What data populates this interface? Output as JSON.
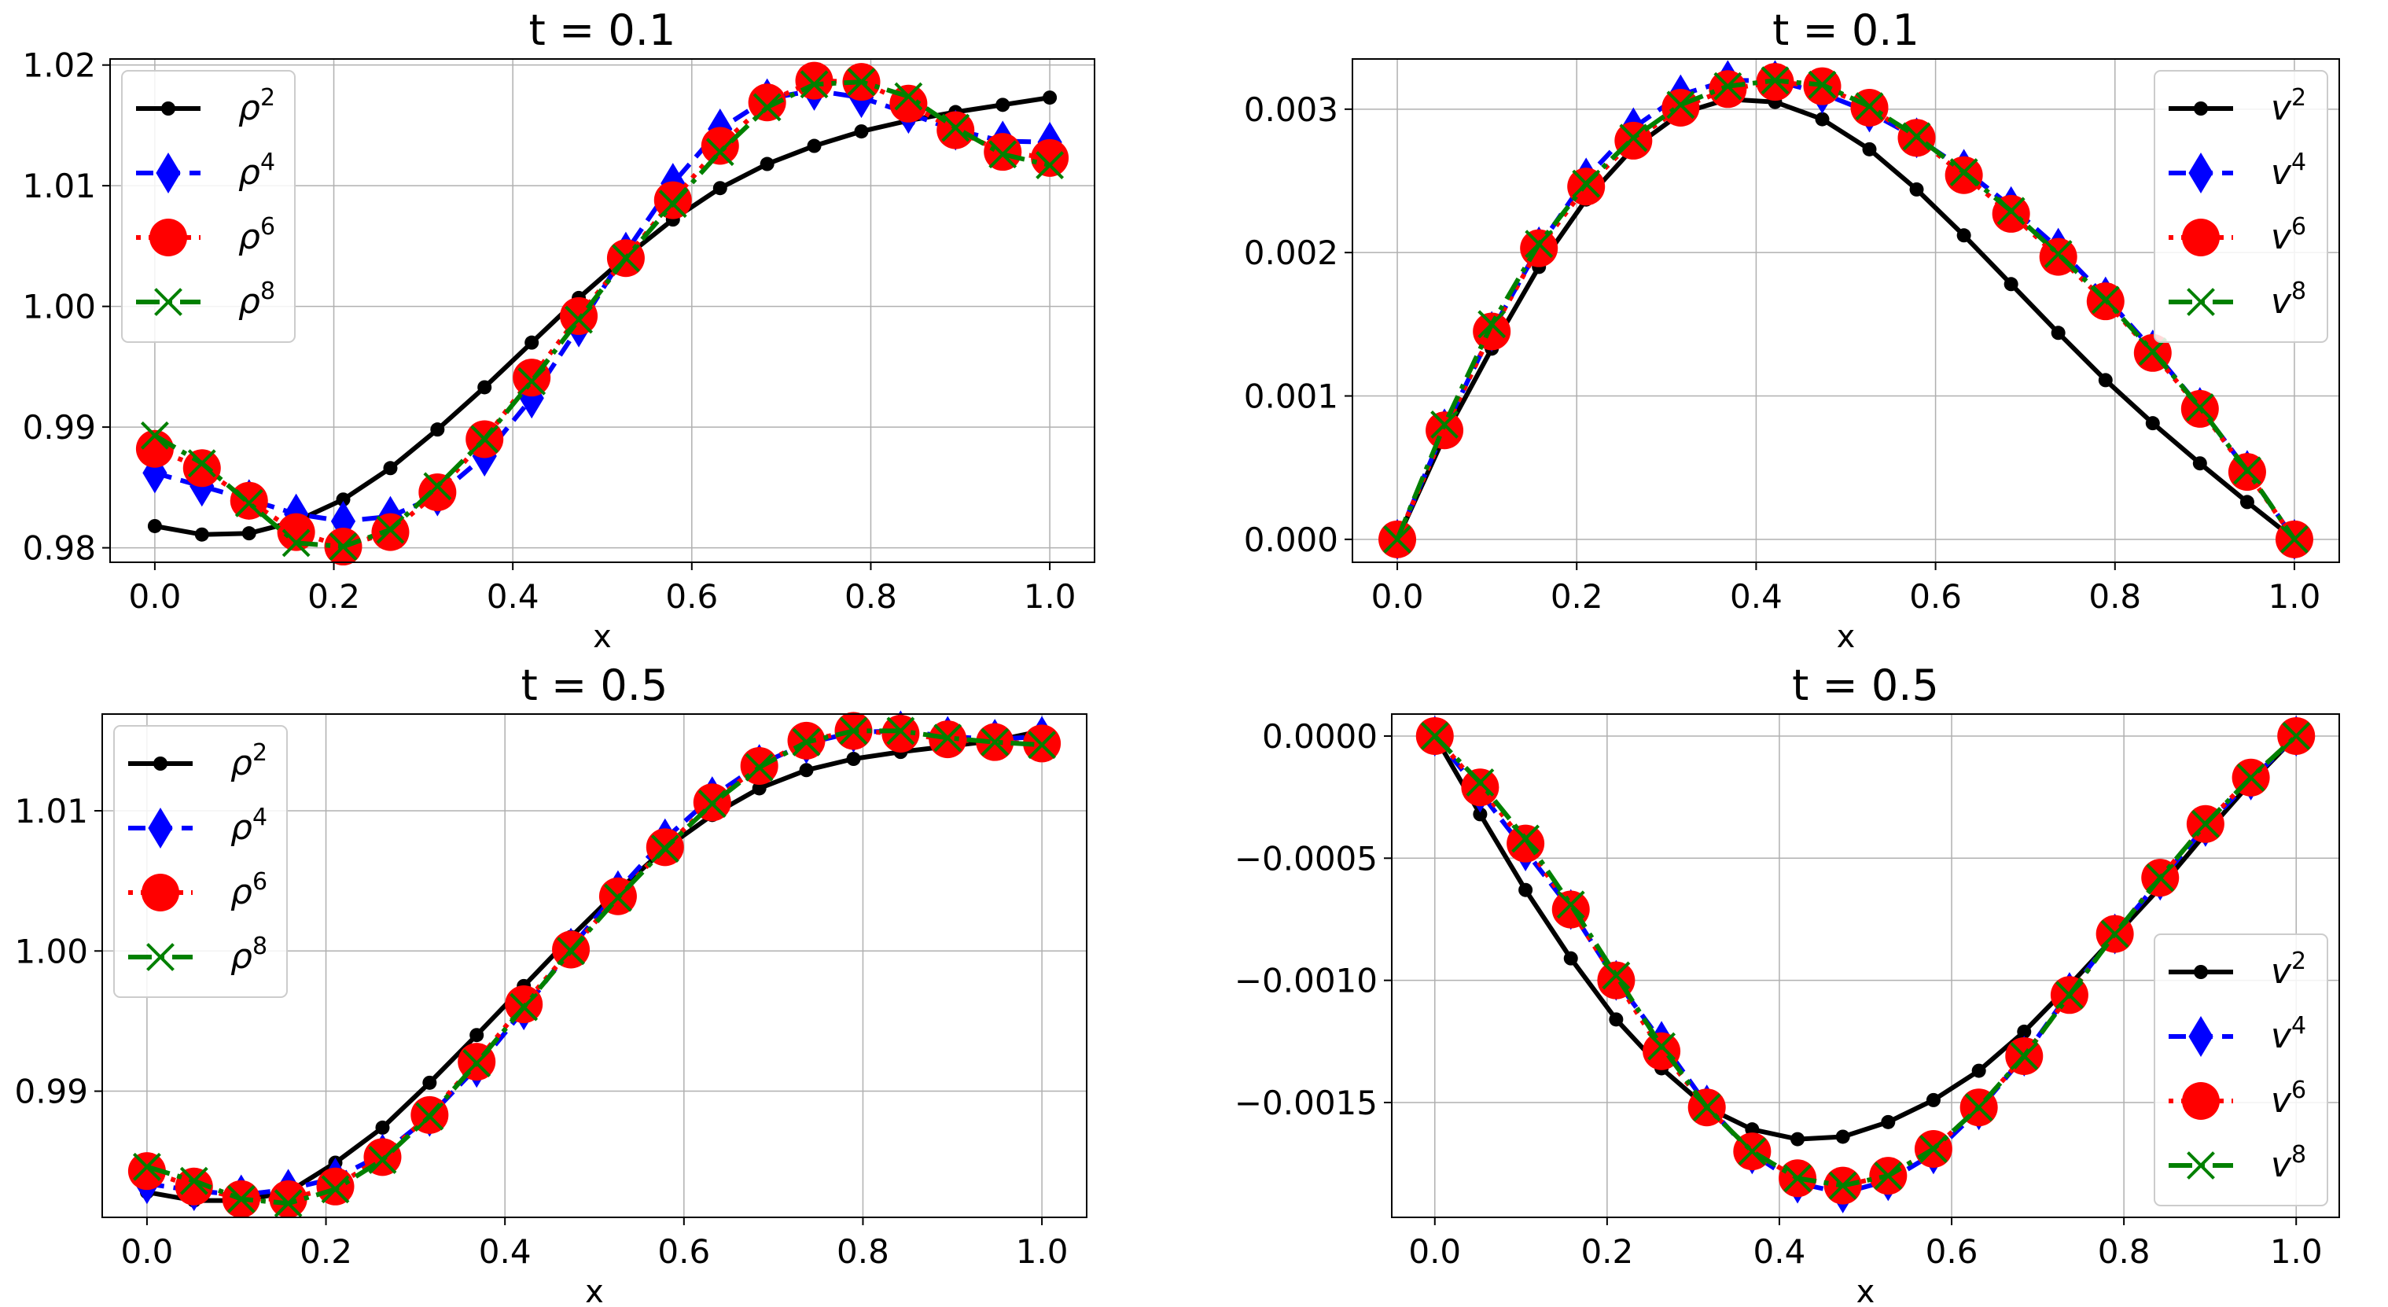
{
  "colors": {
    "black": "#000000",
    "blue": "#0000ff",
    "red": "#ff0000",
    "green": "#008000",
    "grid": "#b0b0b0"
  },
  "chart_data": [
    {
      "type": "line",
      "title": "t = 0.1",
      "xlabel": "x",
      "ylabel": "",
      "xlim": [
        -0.05,
        1.05
      ],
      "ylim": [
        0.9788,
        1.0205
      ],
      "xticks": [
        "0.0",
        "0.2",
        "0.4",
        "0.6",
        "0.8",
        "1.0"
      ],
      "yticks": [
        "0.98",
        "0.99",
        "1.00",
        "1.01",
        "1.02"
      ],
      "ytick_values": [
        0.98,
        0.99,
        1.0,
        1.01,
        1.02
      ],
      "grid": true,
      "legend_position": "upper-left",
      "x": [
        0.0,
        0.0526,
        0.1053,
        0.1579,
        0.2105,
        0.2632,
        0.3158,
        0.3684,
        0.4211,
        0.4737,
        0.5263,
        0.5789,
        0.6316,
        0.6842,
        0.7368,
        0.7895,
        0.8421,
        0.8947,
        0.9474,
        1.0
      ],
      "series": [
        {
          "name": "ρ",
          "sup": "2",
          "style": "black",
          "values": [
            0.9818,
            0.9811,
            0.9812,
            0.9822,
            0.984,
            0.9866,
            0.9898,
            0.9933,
            0.997,
            1.0007,
            1.0041,
            1.0072,
            1.0098,
            1.0118,
            1.0133,
            1.0145,
            1.0154,
            1.0161,
            1.0167,
            1.0173
          ]
        },
        {
          "name": "ρ",
          "sup": "4",
          "style": "blue",
          "values": [
            0.9862,
            0.9851,
            0.984,
            0.9828,
            0.9822,
            0.9826,
            0.9843,
            0.9876,
            0.9924,
            0.9983,
            1.0045,
            1.0102,
            1.0147,
            1.0172,
            1.0179,
            1.0173,
            1.016,
            1.0146,
            1.0137,
            1.0136
          ]
        },
        {
          "name": "ρ",
          "sup": "6",
          "style": "red",
          "values": [
            0.9882,
            0.9866,
            0.9839,
            0.9813,
            0.9801,
            0.9813,
            0.9846,
            0.989,
            0.9941,
            0.9992,
            1.004,
            1.0088,
            1.0133,
            1.0169,
            1.0187,
            1.0186,
            1.0168,
            1.0146,
            1.0128,
            1.0123
          ]
        },
        {
          "name": "ρ",
          "sup": "8",
          "style": "green",
          "values": [
            0.9893,
            0.987,
            0.9837,
            0.9804,
            0.9801,
            0.9815,
            0.9851,
            0.989,
            0.9938,
            0.9989,
            1.004,
            1.0085,
            1.0128,
            1.0165,
            1.0184,
            1.0186,
            1.0174,
            1.0148,
            1.0126,
            1.0117
          ]
        }
      ]
    },
    {
      "type": "line",
      "title": "t = 0.1",
      "xlabel": "x",
      "ylabel": "",
      "xlim": [
        -0.05,
        1.05
      ],
      "ylim": [
        -0.00016,
        0.00335
      ],
      "xticks": [
        "0.0",
        "0.2",
        "0.4",
        "0.6",
        "0.8",
        "1.0"
      ],
      "yticks": [
        "0.000",
        "0.001",
        "0.002",
        "0.003"
      ],
      "ytick_values": [
        0.0,
        0.001,
        0.002,
        0.003
      ],
      "grid": true,
      "legend_position": "upper-right",
      "x": [
        0.0,
        0.0526,
        0.1053,
        0.1579,
        0.2105,
        0.2632,
        0.3158,
        0.3684,
        0.4211,
        0.4737,
        0.5263,
        0.5789,
        0.6316,
        0.6842,
        0.7368,
        0.7895,
        0.8421,
        0.8947,
        0.9474,
        1.0
      ],
      "series": [
        {
          "name": "v",
          "sup": "2",
          "style": "black",
          "values": [
            0.0,
            0.00072,
            0.00133,
            0.0019,
            0.00237,
            0.00273,
            0.00297,
            0.00307,
            0.00305,
            0.00293,
            0.00272,
            0.00244,
            0.00212,
            0.00178,
            0.00144,
            0.00111,
            0.00081,
            0.00053,
            0.00026,
            0.0
          ]
        },
        {
          "name": "v",
          "sup": "4",
          "style": "blue",
          "values": [
            0.0,
            0.00077,
            0.00145,
            0.00204,
            0.00252,
            0.00287,
            0.0031,
            0.0032,
            0.0032,
            0.00311,
            0.00298,
            0.0028,
            0.00258,
            0.00232,
            0.00203,
            0.00169,
            0.00132,
            0.00092,
            0.00048,
            0.0
          ]
        },
        {
          "name": "v",
          "sup": "6",
          "style": "red",
          "values": [
            0.0,
            0.00076,
            0.00145,
            0.00203,
            0.00246,
            0.00278,
            0.00301,
            0.00314,
            0.00319,
            0.00316,
            0.00301,
            0.0028,
            0.00254,
            0.00227,
            0.00197,
            0.00166,
            0.0013,
            0.00091,
            0.00047,
            0.0
          ]
        },
        {
          "name": "v",
          "sup": "8",
          "style": "green",
          "values": [
            0.0,
            0.0008,
            0.0015,
            0.00206,
            0.00248,
            0.0028,
            0.00303,
            0.00316,
            0.0032,
            0.00317,
            0.00302,
            0.00281,
            0.00256,
            0.00229,
            0.00199,
            0.00167,
            0.00131,
            0.00092,
            0.00048,
            0.0
          ]
        }
      ]
    },
    {
      "type": "line",
      "title": "t = 0.5",
      "xlabel": "x",
      "ylabel": "",
      "xlim": [
        -0.05,
        1.05
      ],
      "ylim": [
        0.981,
        1.0169
      ],
      "xticks": [
        "0.0",
        "0.2",
        "0.4",
        "0.6",
        "0.8",
        "1.0"
      ],
      "yticks": [
        "0.99",
        "1.00",
        "1.01"
      ],
      "ytick_values": [
        0.99,
        1.0,
        1.01
      ],
      "grid": true,
      "legend_position": "upper-left",
      "x": [
        0.0,
        0.0526,
        0.1053,
        0.1579,
        0.2105,
        0.2632,
        0.3158,
        0.3684,
        0.4211,
        0.4737,
        0.5263,
        0.5789,
        0.6316,
        0.6842,
        0.7368,
        0.7895,
        0.8421,
        0.8947,
        0.9474,
        1.0
      ],
      "series": [
        {
          "name": "ρ",
          "sup": "2",
          "style": "black",
          "values": [
            0.9828,
            0.9822,
            0.9822,
            0.9828,
            0.9849,
            0.9874,
            0.9906,
            0.994,
            0.9975,
            1.001,
            1.0043,
            1.0073,
            1.0097,
            1.0116,
            1.0129,
            1.0137,
            1.0142,
            1.0146,
            1.015,
            1.0157
          ]
        },
        {
          "name": "ρ",
          "sup": "4",
          "style": "blue",
          "values": [
            0.9834,
            0.9829,
            0.9826,
            0.983,
            0.9838,
            0.9855,
            0.9882,
            0.9917,
            0.9958,
            1.0002,
            1.0043,
            1.008,
            1.011,
            1.0133,
            1.0148,
            1.0156,
            1.0157,
            1.0153,
            1.0151,
            1.0153
          ]
        },
        {
          "name": "ρ",
          "sup": "6",
          "style": "red",
          "values": [
            0.9843,
            0.9832,
            0.9823,
            0.9823,
            0.9832,
            0.9853,
            0.9883,
            0.9921,
            0.9962,
            1.0001,
            1.0039,
            1.0074,
            1.0106,
            1.0132,
            1.015,
            1.0157,
            1.0155,
            1.0151,
            1.0149,
            1.0148
          ]
        },
        {
          "name": "ρ",
          "sup": "8",
          "style": "green",
          "values": [
            0.9846,
            0.9836,
            0.9823,
            0.982,
            0.983,
            0.9851,
            0.9882,
            0.992,
            0.996,
            1.0,
            1.0038,
            1.0073,
            1.0105,
            1.0131,
            1.0149,
            1.0157,
            1.0157,
            1.0152,
            1.0149,
            1.0147
          ]
        }
      ]
    },
    {
      "type": "line",
      "title": "t = 0.5",
      "xlabel": "x",
      "ylabel": "",
      "xlim": [
        -0.05,
        1.05
      ],
      "ylim": [
        -0.00197,
        9e-05
      ],
      "xticks": [
        "0.0",
        "0.2",
        "0.4",
        "0.6",
        "0.8",
        "1.0"
      ],
      "yticks": [
        "0.0000",
        "−0.0005",
        "−0.0010",
        "−0.0015"
      ],
      "ytick_values": [
        0.0,
        -0.0005,
        -0.001,
        -0.0015
      ],
      "grid": true,
      "legend_position": "lower-right",
      "x": [
        0.0,
        0.0526,
        0.1053,
        0.1579,
        0.2105,
        0.2632,
        0.3158,
        0.3684,
        0.4211,
        0.4737,
        0.5263,
        0.5789,
        0.6316,
        0.6842,
        0.7368,
        0.7895,
        0.8421,
        0.8947,
        0.9474,
        1.0
      ],
      "series": [
        {
          "name": "v",
          "sup": "2",
          "style": "black",
          "values": [
            0.0,
            -0.00032,
            -0.00063,
            -0.00091,
            -0.00116,
            -0.00136,
            -0.00152,
            -0.00161,
            -0.00165,
            -0.00164,
            -0.00158,
            -0.00149,
            -0.00137,
            -0.00121,
            -0.00102,
            -0.00082,
            -0.00062,
            -0.0004,
            -0.00019,
            0.0
          ]
        },
        {
          "name": "v",
          "sup": "4",
          "style": "blue",
          "values": [
            0.0,
            -0.00023,
            -0.00047,
            -0.00071,
            -0.001,
            -0.00125,
            -0.00151,
            -0.00171,
            -0.00183,
            -0.00187,
            -0.00182,
            -0.00171,
            -0.00153,
            -0.00131,
            -0.00105,
            -0.00081,
            -0.00059,
            -0.00037,
            -0.00018,
            0.0
          ]
        },
        {
          "name": "v",
          "sup": "6",
          "style": "red",
          "values": [
            0.0,
            -0.00021,
            -0.00044,
            -0.00071,
            -0.001,
            -0.00129,
            -0.00152,
            -0.0017,
            -0.00181,
            -0.00184,
            -0.0018,
            -0.00169,
            -0.00152,
            -0.00131,
            -0.00106,
            -0.00081,
            -0.00058,
            -0.00036,
            -0.00017,
            0.0
          ]
        },
        {
          "name": "v",
          "sup": "8",
          "style": "green",
          "values": [
            0.0,
            -0.00019,
            -0.00042,
            -0.00069,
            -0.00098,
            -0.00127,
            -0.00152,
            -0.0017,
            -0.00181,
            -0.00184,
            -0.0018,
            -0.00169,
            -0.00152,
            -0.00131,
            -0.00106,
            -0.00081,
            -0.00058,
            -0.00036,
            -0.00017,
            0.0
          ]
        }
      ]
    }
  ]
}
